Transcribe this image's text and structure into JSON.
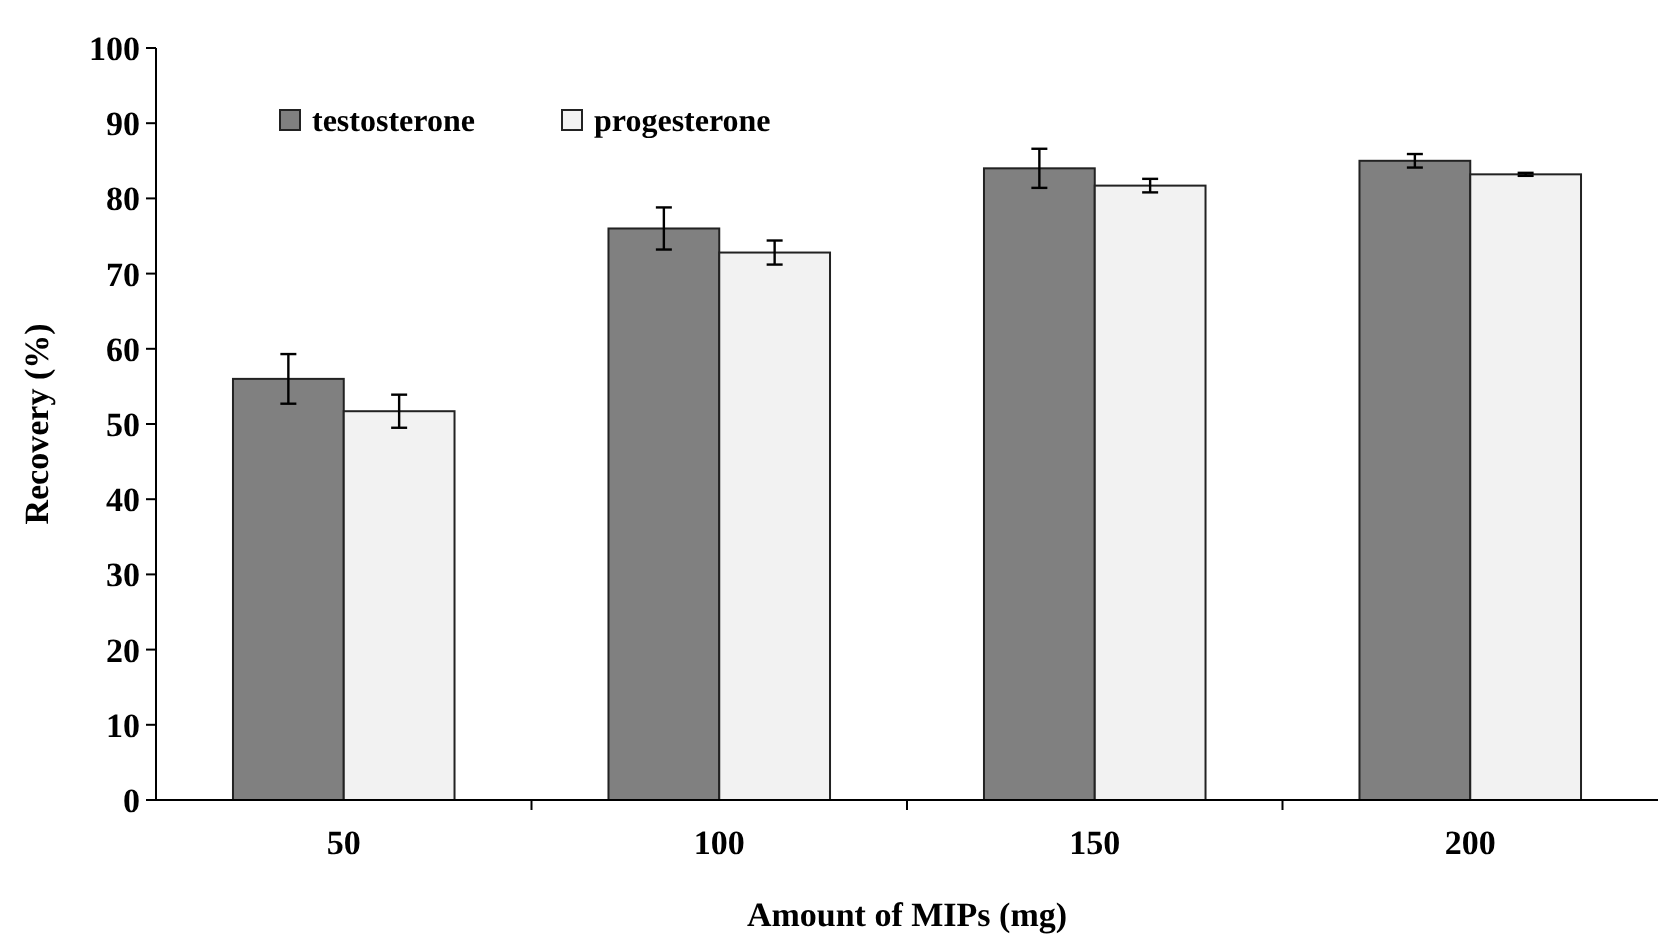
{
  "chart_data": {
    "type": "bar",
    "xlabel": "Amount of MIPs (mg)",
    "ylabel": "Recovery (%)",
    "categories": [
      "50",
      "100",
      "150",
      "200"
    ],
    "series": [
      {
        "name": "testosterone",
        "color": "#808080",
        "values": [
          56,
          76,
          84,
          85
        ],
        "errors": [
          3.3,
          2.8,
          2.6,
          0.9
        ]
      },
      {
        "name": "progesterone",
        "color": "#f2f2f2",
        "values": [
          51.7,
          72.8,
          81.7,
          83.2
        ],
        "errors": [
          2.2,
          1.6,
          0.9,
          0.2
        ]
      }
    ],
    "ylim": [
      0,
      100
    ],
    "yticks": [
      0,
      10,
      20,
      30,
      40,
      50,
      60,
      70,
      80,
      90,
      100
    ],
    "grid": false,
    "legend": "top left"
  }
}
